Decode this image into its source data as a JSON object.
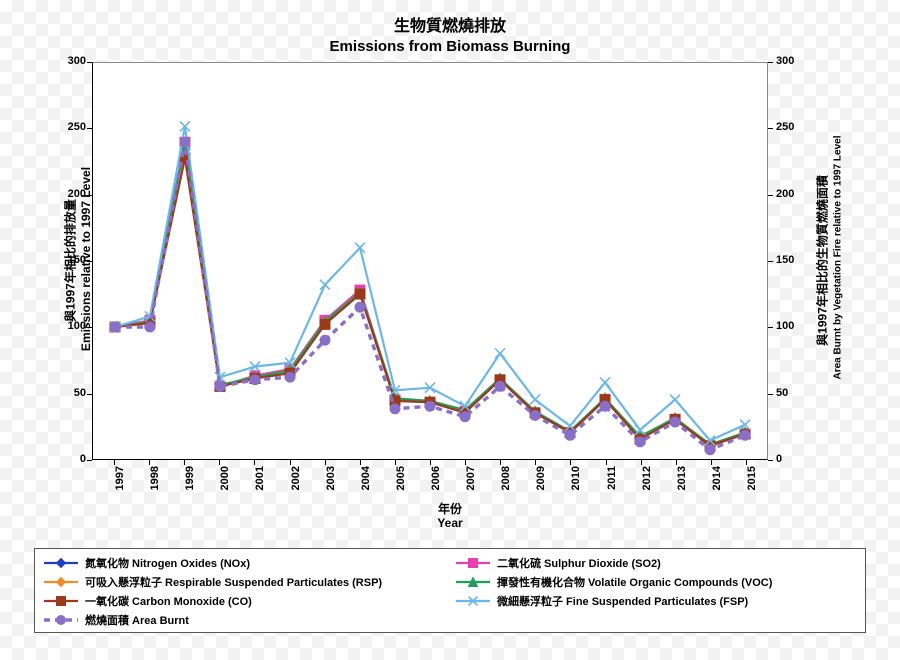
{
  "title_zh": "生物質燃燒排放",
  "title_en": "Emissions from Biomass Burning",
  "x_axis": {
    "label_zh": "年份",
    "label_en": "Year",
    "categories": [
      "1997",
      "1998",
      "1999",
      "2000",
      "2001",
      "2002",
      "2003",
      "2004",
      "2005",
      "2006",
      "2007",
      "2008",
      "2009",
      "2010",
      "2011",
      "2012",
      "2013",
      "2014",
      "2015"
    ]
  },
  "y_left": {
    "label_zh": "與1997年相比的排放量",
    "label_en": "Emissions relative to 1997 Level",
    "min": 0,
    "max": 300,
    "step": 50
  },
  "y_right": {
    "label_zh": "與1997年相比的生物質燃燒面積",
    "label_en": "Area Burnt by Vegetation Fire relative to 1997 Level",
    "min": 0,
    "max": 300,
    "step": 50
  },
  "series": [
    {
      "id": "nox",
      "label": "氮氧化物 Nitrogen Oxides (NOx)",
      "color": "#1f3fbf",
      "marker": "diamond",
      "dash": "none",
      "width": 2.2,
      "values": [
        100,
        105,
        240,
        55,
        63,
        68,
        105,
        128,
        45,
        43,
        36,
        60,
        35,
        20,
        45,
        16,
        30,
        10,
        19
      ]
    },
    {
      "id": "so2",
      "label": "二氧化硫 Sulphur Dioxide (SO2)",
      "color": "#e83fae",
      "marker": "square",
      "dash": "none",
      "width": 2.2,
      "values": [
        100,
        105,
        240,
        55,
        63,
        68,
        105,
        128,
        45,
        43,
        36,
        60,
        35,
        20,
        45,
        16,
        30,
        10,
        19
      ]
    },
    {
      "id": "rsp",
      "label": "可吸入懸浮粒子 Respirable Suspended Particulates (RSP)",
      "color": "#ef8b2a",
      "marker": "diamond",
      "dash": "none",
      "width": 2.2,
      "values": [
        100,
        104,
        238,
        56,
        62,
        67,
        104,
        126,
        46,
        44,
        37,
        61,
        36,
        21,
        46,
        17,
        31,
        11,
        20
      ]
    },
    {
      "id": "voc",
      "label": "揮發性有機化合物 Volatile Organic Compounds (VOC)",
      "color": "#1fa05a",
      "marker": "triangle",
      "dash": "none",
      "width": 2.2,
      "values": [
        100,
        104,
        238,
        56,
        62,
        67,
        104,
        126,
        46,
        44,
        37,
        61,
        36,
        21,
        46,
        17,
        31,
        11,
        20
      ]
    },
    {
      "id": "co",
      "label": "一氧化碳 Carbon Monoxide (CO)",
      "color": "#9b3a1a",
      "marker": "square",
      "dash": "none",
      "width": 2.2,
      "values": [
        100,
        103,
        228,
        55,
        61,
        65,
        102,
        125,
        44,
        43,
        35,
        60,
        35,
        20,
        45,
        15,
        30,
        10,
        19
      ]
    },
    {
      "id": "fsp",
      "label": "微細懸浮粒子 Fine Suspended Particulates (FSP)",
      "color": "#6bb7e8",
      "marker": "x",
      "dash": "none",
      "width": 2.2,
      "values": [
        100,
        108,
        252,
        62,
        70,
        73,
        132,
        160,
        52,
        54,
        40,
        80,
        45,
        25,
        58,
        22,
        45,
        14,
        26
      ]
    },
    {
      "id": "area",
      "label": "燃燒面積 Area Burnt",
      "color": "#8a6fc9",
      "marker": "circle",
      "dash": "6,5",
      "width": 3.4,
      "values": [
        100,
        100,
        240,
        55,
        60,
        62,
        90,
        115,
        38,
        40,
        32,
        55,
        33,
        18,
        40,
        13,
        28,
        7,
        18
      ]
    }
  ],
  "marker_size": 5,
  "background": "#ffffff",
  "plot_border": "#000000",
  "title_fontsize": 16,
  "axis_label_fontsize": 12,
  "tick_fontsize": 11
}
